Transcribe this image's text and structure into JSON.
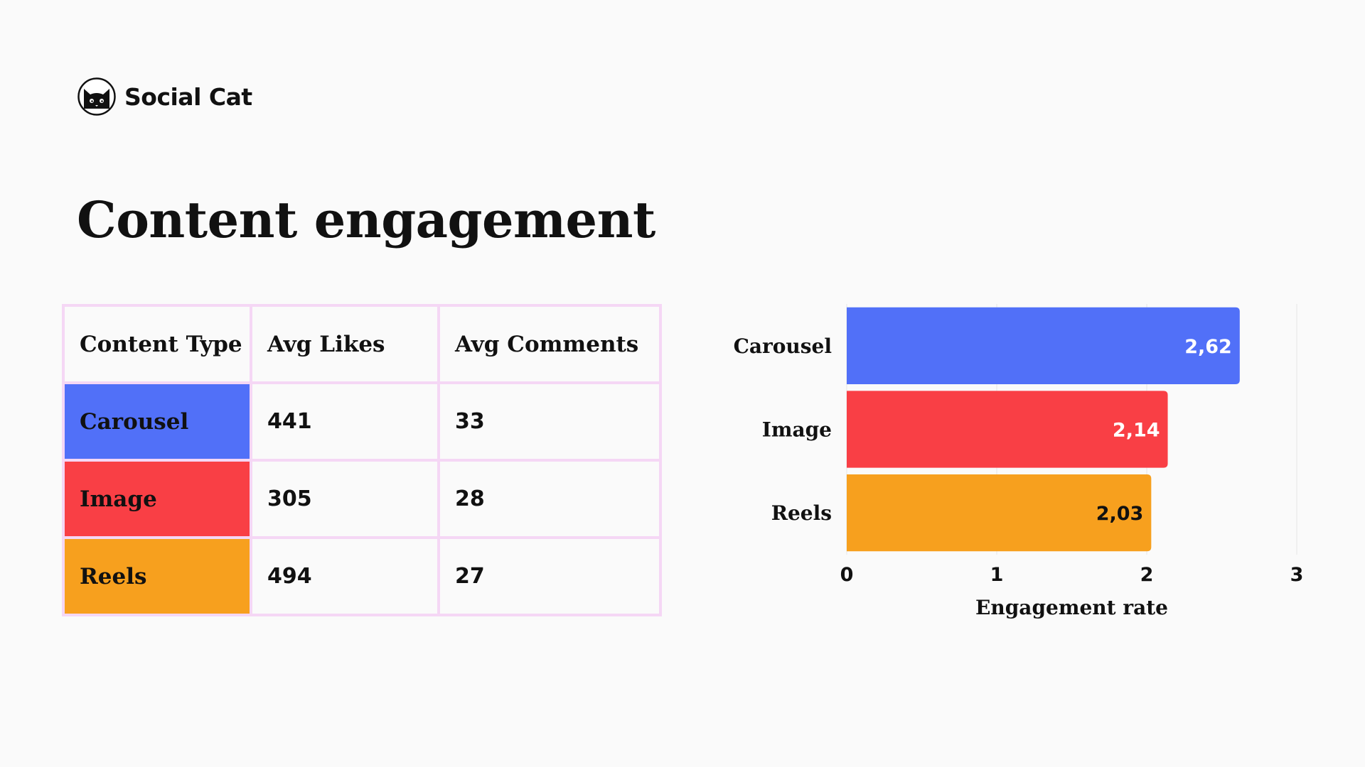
{
  "brand": {
    "name": "Social Cat",
    "logo_icon": "black-cat-icon"
  },
  "title": "Content engagement",
  "table": {
    "headers": [
      "Content Type",
      "Avg Likes",
      "Avg Comments"
    ],
    "rows": [
      {
        "type": "Carousel",
        "likes": "441",
        "comments": "33",
        "color": "#5170f8"
      },
      {
        "type": "Image",
        "likes": "305",
        "comments": "28",
        "color": "#f93f45"
      },
      {
        "type": "Reels",
        "likes": "494",
        "comments": "27",
        "color": "#f7a01e"
      }
    ]
  },
  "chart_data": {
    "type": "bar",
    "orientation": "horizontal",
    "categories": [
      "Carousel",
      "Image",
      "Reels"
    ],
    "values": [
      2.62,
      2.14,
      2.03
    ],
    "value_labels": [
      "2,62",
      "2,14",
      "2,03"
    ],
    "colors": [
      "#5170f8",
      "#f93f45",
      "#f7a01e"
    ],
    "xlabel": "Engagement rate",
    "ylabel": "",
    "xlim": [
      0,
      3
    ],
    "xticks": [
      "0",
      "1",
      "2",
      "3"
    ],
    "grid": true,
    "legend": "none"
  }
}
